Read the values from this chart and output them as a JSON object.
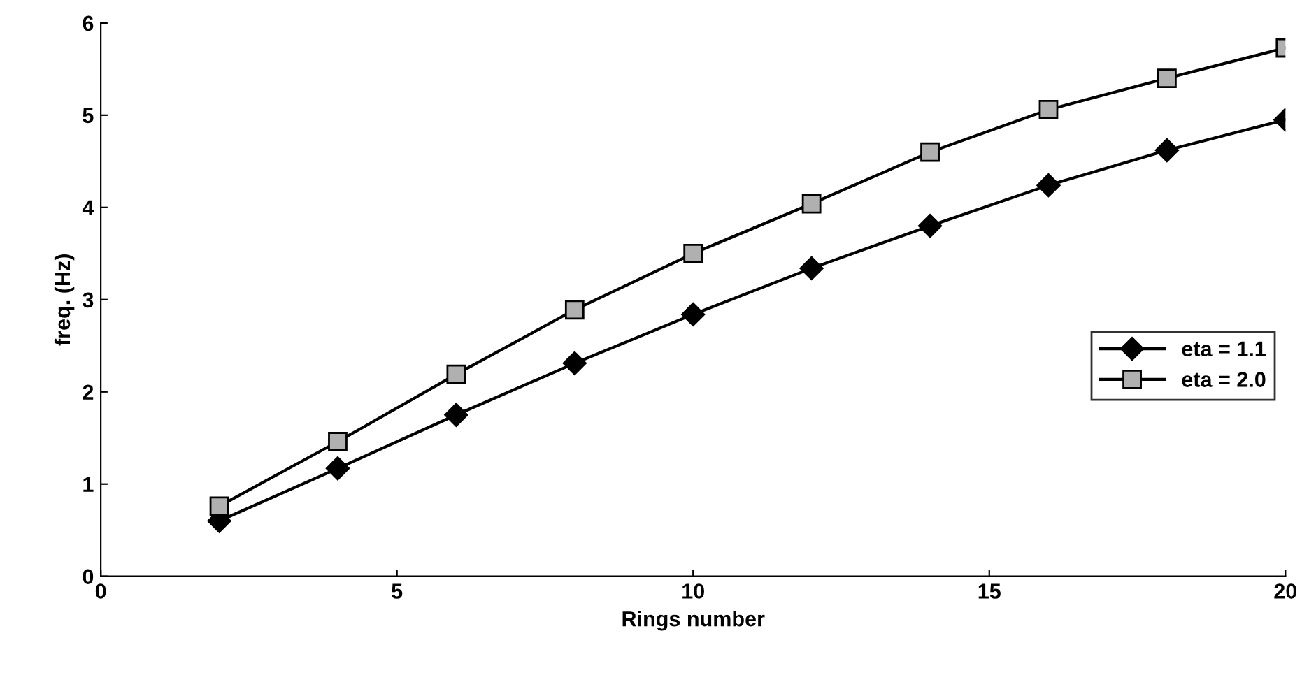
{
  "chart_data": {
    "type": "line",
    "xlabel": "Rings number",
    "ylabel": "freq. (Hz)",
    "xlim": [
      0,
      20
    ],
    "xticks": [
      0,
      5,
      10,
      15,
      20
    ],
    "ylim": [
      0,
      6
    ],
    "yticks": [
      0,
      1,
      2,
      3,
      4,
      5,
      6
    ],
    "grid": false,
    "legend": "right",
    "series": [
      {
        "name": "eta = 1.1",
        "color": "#000000",
        "marker": "diamond",
        "x": [
          2,
          4,
          6,
          8,
          10,
          12,
          14,
          16,
          18,
          20
        ],
        "values": [
          0.6,
          1.17,
          1.75,
          2.31,
          2.84,
          3.34,
          3.8,
          4.24,
          4.62,
          4.95
        ]
      },
      {
        "name": "eta = 2.0",
        "color": "#000000",
        "marker": "square",
        "x": [
          2,
          4,
          6,
          8,
          10,
          12,
          14,
          16,
          18,
          20
        ],
        "values": [
          0.76,
          1.46,
          2.19,
          2.89,
          3.5,
          4.04,
          4.6,
          5.06,
          5.4,
          5.73
        ]
      }
    ]
  }
}
